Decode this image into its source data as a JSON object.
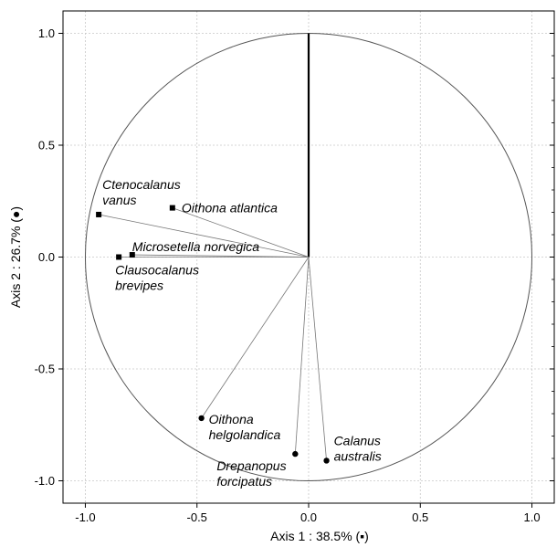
{
  "chart_data": {
    "type": "scatter",
    "title": "",
    "xlabel": "Axis 1 : 38.5% (▪)",
    "ylabel": "Axis 2 : 26.7% (●)",
    "xlim": [
      -1.1,
      1.1
    ],
    "ylim": [
      -1.1,
      1.1
    ],
    "x_ticks": [
      "-1.0",
      "-0.5",
      "0.0",
      "0.5",
      "1.0"
    ],
    "y_ticks": [
      "1.0",
      "0.5",
      "0.0",
      "-0.5",
      "-1.0"
    ],
    "grid": true,
    "unit_circle": true,
    "supplementary_vector": {
      "x": 0.0,
      "y": 1.0
    },
    "series": [
      {
        "marker": "square",
        "points": [
          {
            "label_lines": [
              "Ctenocalanus",
              "vanus"
            ],
            "x": -0.94,
            "y": 0.19
          },
          {
            "label_lines": [
              "Oithona atlantica"
            ],
            "x": -0.61,
            "y": 0.22
          },
          {
            "label_lines": [
              "Microsetella norvegica"
            ],
            "x": -0.79,
            "y": 0.01
          },
          {
            "label_lines": [
              "Clausocalanus",
              "brevipes"
            ],
            "x": -0.85,
            "y": 0.0
          }
        ]
      },
      {
        "marker": "circle",
        "points": [
          {
            "label_lines": [
              "Oithona",
              "helgolandica"
            ],
            "x": -0.48,
            "y": -0.72
          },
          {
            "label_lines": [
              "Drepanopus",
              "forcipatus"
            ],
            "x": -0.06,
            "y": -0.88
          },
          {
            "label_lines": [
              "Calanus",
              "australis"
            ],
            "x": 0.08,
            "y": -0.91
          }
        ]
      }
    ]
  }
}
